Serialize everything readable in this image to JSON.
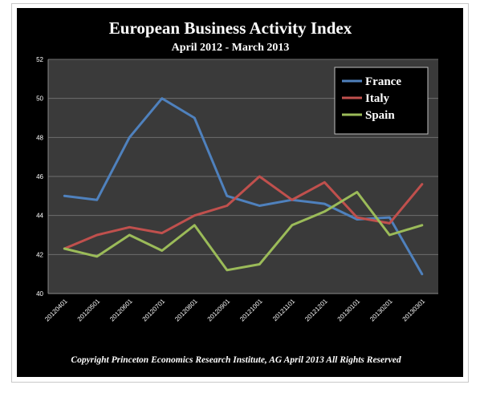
{
  "chart_data": {
    "type": "line",
    "title": "European Business Activity Index",
    "subtitle": "April 2012 - March 2013",
    "categories": [
      "20120401",
      "20120501",
      "20120601",
      "20120701",
      "20120801",
      "20120901",
      "20121001",
      "20121101",
      "20121201",
      "20130101",
      "20130201",
      "20130301"
    ],
    "series": [
      {
        "name": "France",
        "color": "#4f81bd",
        "values": [
          45.0,
          44.8,
          48.0,
          50.0,
          49.0,
          45.0,
          44.5,
          44.8,
          44.6,
          43.8,
          43.9,
          41.0
        ]
      },
      {
        "name": "Italy",
        "color": "#c0504d",
        "values": [
          42.3,
          43.0,
          43.4,
          43.1,
          44.0,
          44.5,
          46.0,
          44.8,
          45.7,
          43.9,
          43.6,
          45.6
        ]
      },
      {
        "name": "Spain",
        "color": "#9bbb59",
        "values": [
          42.3,
          41.9,
          43.0,
          42.2,
          43.5,
          41.2,
          41.5,
          43.5,
          44.2,
          45.2,
          43.0,
          43.5
        ]
      }
    ],
    "ylim": [
      40,
      52
    ],
    "yticks": [
      40,
      42,
      44,
      46,
      48,
      50,
      52
    ],
    "grid": true,
    "legend_position": "top-right",
    "footer": "Copyright Princeton Economics Research Institute, AG April 2013 All Rights Reserved"
  }
}
